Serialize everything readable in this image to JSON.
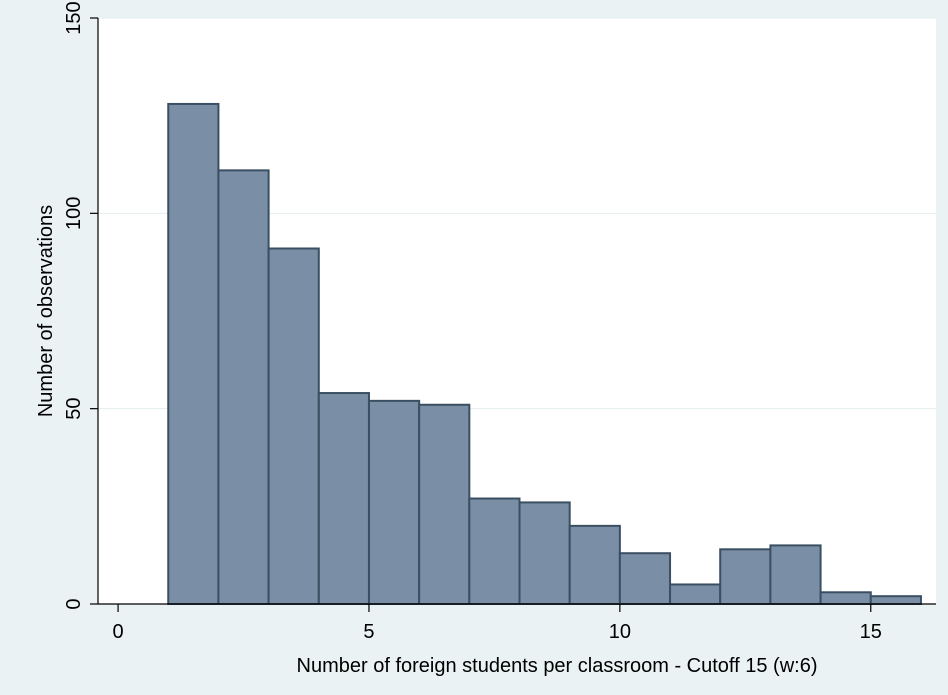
{
  "chart_data": {
    "type": "bar",
    "title": "",
    "xlabel": "Number of foreign students per classroom - Cutoff 15 (w:6)",
    "ylabel": "Number of observations",
    "xlim": [
      -0.4,
      16.3
    ],
    "ylim": [
      0,
      150
    ],
    "xticks": [
      0,
      5,
      10,
      15
    ],
    "yticks": [
      0,
      50,
      100,
      150
    ],
    "bin_width": 1,
    "bins": [
      {
        "start": 1,
        "value": 128
      },
      {
        "start": 2,
        "value": 111
      },
      {
        "start": 3,
        "value": 91
      },
      {
        "start": 4,
        "value": 54
      },
      {
        "start": 5,
        "value": 52
      },
      {
        "start": 6,
        "value": 51
      },
      {
        "start": 7,
        "value": 27
      },
      {
        "start": 8,
        "value": 26
      },
      {
        "start": 9,
        "value": 20
      },
      {
        "start": 10,
        "value": 13
      },
      {
        "start": 11,
        "value": 5
      },
      {
        "start": 12,
        "value": 14
      },
      {
        "start": 13,
        "value": 15
      },
      {
        "start": 14,
        "value": 3
      },
      {
        "start": 15,
        "value": 2
      }
    ],
    "grid": true,
    "colors": {
      "bar_fill": "#7a8fa5",
      "bar_edge": "#3b4f63",
      "plot_background": "#ffffff",
      "page_background": "#eaf2f3"
    }
  }
}
